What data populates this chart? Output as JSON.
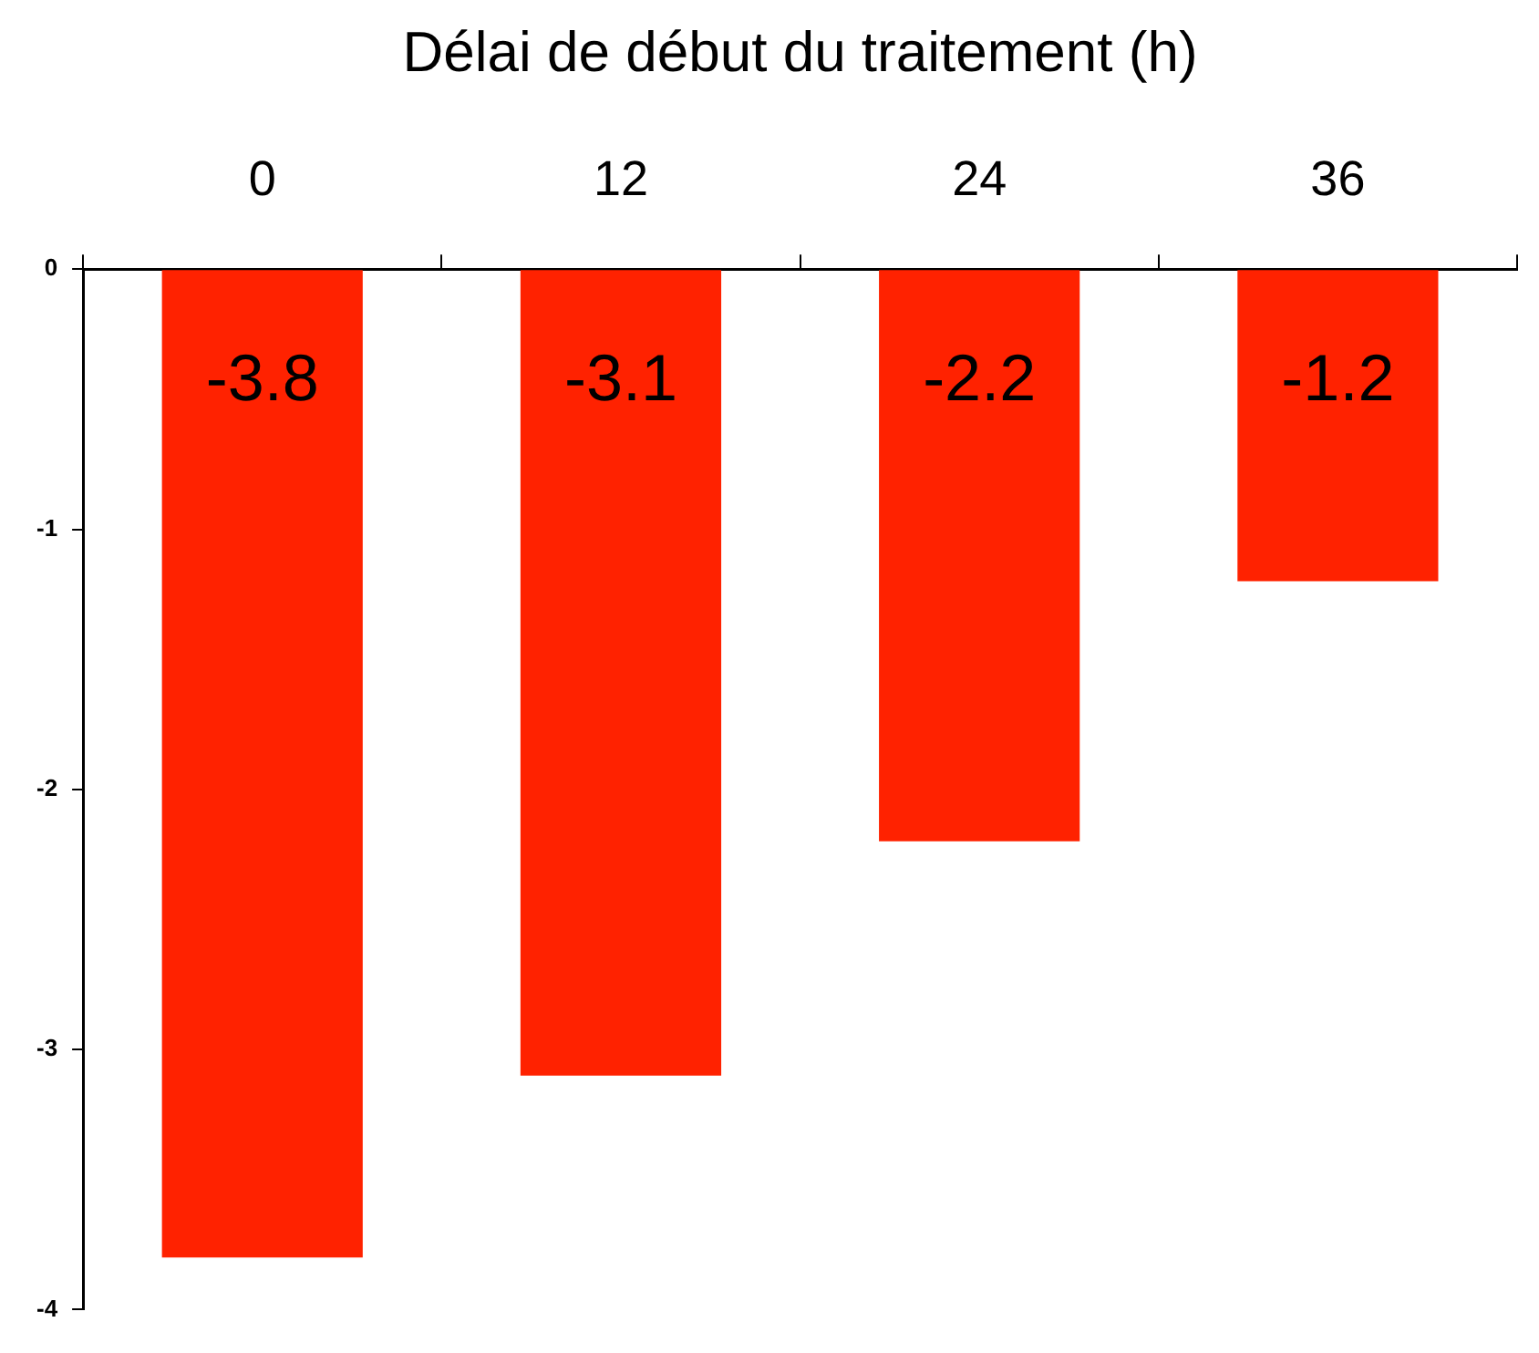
{
  "chart_data": {
    "type": "bar",
    "xlabel": "Délai de début du traitement (h)",
    "categories": [
      "0",
      "12",
      "24",
      "36"
    ],
    "values": [
      -3.8,
      -3.1,
      -2.2,
      -1.2
    ],
    "color": "#ff2200",
    "ylim": [
      -4,
      0
    ],
    "yticks": [
      -4,
      -3,
      -2,
      -1,
      0
    ],
    "data_labels": true,
    "grid": false,
    "legend": false
  }
}
